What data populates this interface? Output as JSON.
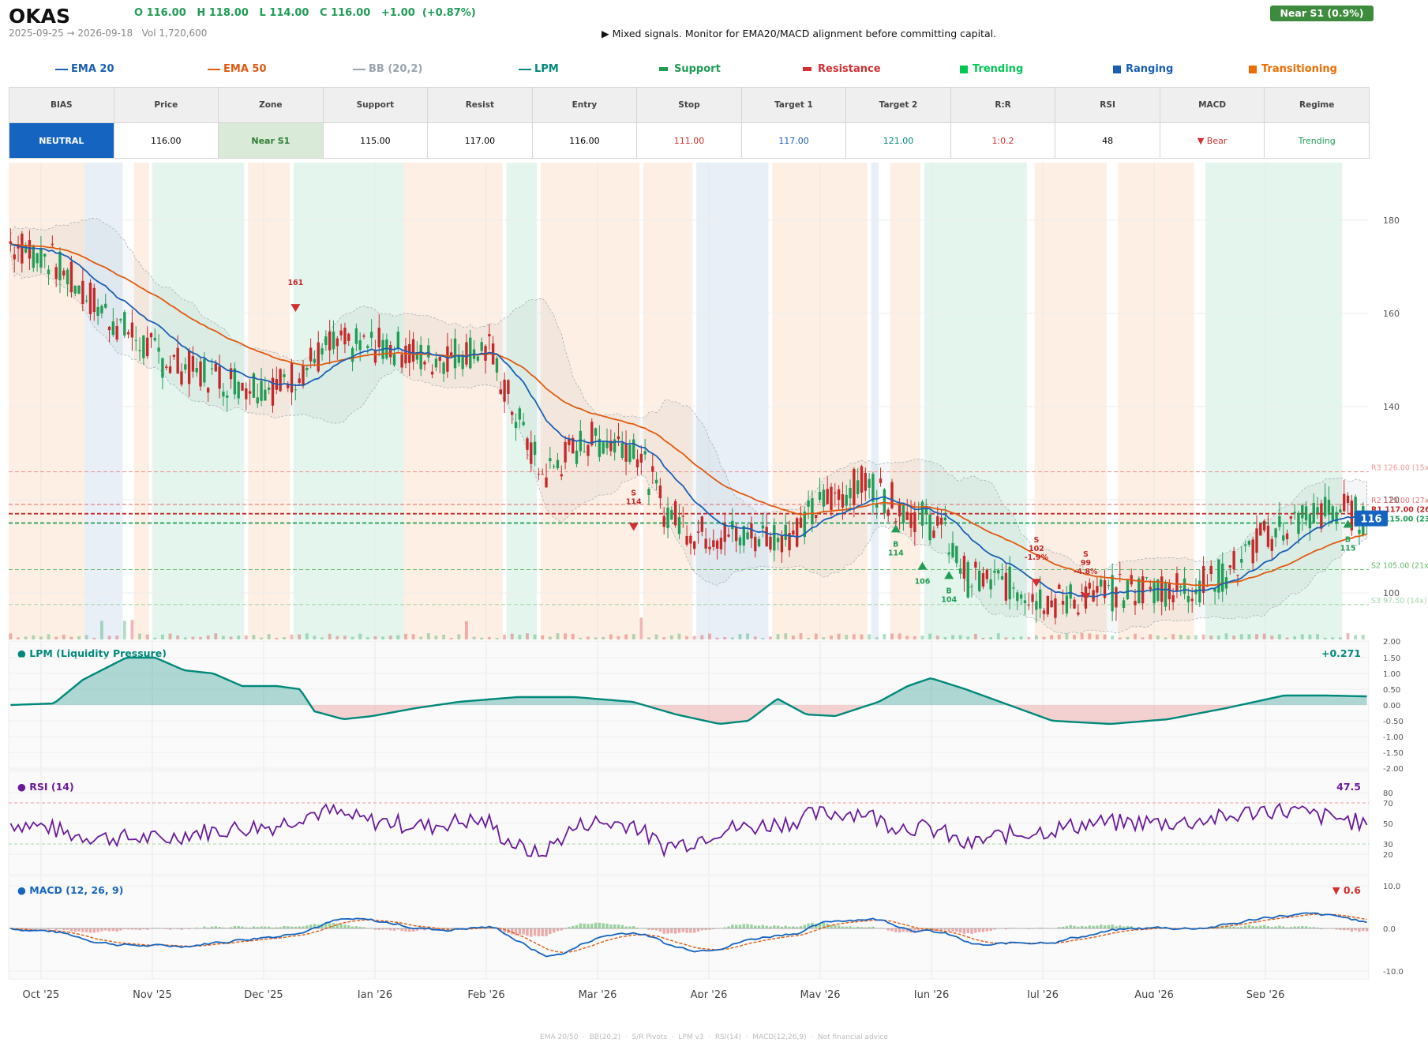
{
  "header": {
    "ticker": "OKAS",
    "ohlc": "O 116.00   H 118.00   L 114.00   C 116.00   +1.00  (+0.87%)",
    "range": "2025-09-25 → 2026-09-18   Vol 1,720,600",
    "message": "▶  Mixed signals. Monitor for EMA20/MACD alignment before committing capital.",
    "zone_badge": "Near S1  (0.9%)"
  },
  "legend": [
    {
      "label": "EMA 20",
      "color": "#1a5fb4",
      "kind": "line"
    },
    {
      "label": "EMA 50",
      "color": "#e05a10",
      "kind": "line"
    },
    {
      "label": "BB (20,2)",
      "color": "#9aa4ad",
      "kind": "line"
    },
    {
      "label": "LPM",
      "color": "#00897b",
      "kind": "line"
    },
    {
      "label": "Support",
      "color": "#1f9d55",
      "kind": "bar"
    },
    {
      "label": "Resistance",
      "color": "#d32f2f",
      "kind": "bar"
    },
    {
      "label": "Trending",
      "color": "#00c853",
      "kind": "square"
    },
    {
      "label": "Ranging",
      "color": "#1a5fb4",
      "kind": "square"
    },
    {
      "label": "Transitioning",
      "color": "#ef6c00",
      "kind": "square"
    }
  ],
  "metrics": {
    "headers": [
      "BIAS",
      "Price",
      "Zone",
      "Support",
      "Resist",
      "Entry",
      "Stop",
      "Target 1",
      "Target 2",
      "R:R",
      "RSI",
      "MACD",
      "Regime"
    ],
    "values": [
      "NEUTRAL",
      "116.00",
      "Near S1",
      "115.00",
      "117.00",
      "116.00",
      "111.00",
      "117.00",
      "121.00",
      "1:0.2",
      "48",
      "▼ Bear",
      "Trending"
    ]
  },
  "chart_data": {
    "type": "candlestick",
    "x_ticks": [
      "Oct '25",
      "Nov '25",
      "Dec '25",
      "Jan '26",
      "Feb '26",
      "Mar '26",
      "Apr '26",
      "May '26",
      "Jun '26",
      "Jul '26",
      "Aug '26",
      "Sep '26"
    ],
    "price_ticks": [
      "180",
      "160",
      "140",
      "120",
      "100"
    ],
    "volume_tick": "2.00",
    "last_price": "116",
    "levels": [
      {
        "label": "R3 126.00 (15x)",
        "value": 126,
        "color": "#ef9a9a"
      },
      {
        "label": "R2 119.00 (27x)",
        "value": 119,
        "color": "#e57373"
      },
      {
        "label": "R1 117.00 (26x)",
        "value": 117,
        "color": "#c62828"
      },
      {
        "label": "S1 115.00 (23x)",
        "value": 115,
        "color": "#1f9d55"
      },
      {
        "label": "S2 105.00 (21x)",
        "value": 105,
        "color": "#66bb6a"
      },
      {
        "label": "S3 97.50 (14x)",
        "value": 97.5,
        "color": "#a5d6a7"
      }
    ],
    "regimes": [
      {
        "start": 0,
        "end": 20,
        "type": "transitioning"
      },
      {
        "start": 20,
        "end": 30,
        "type": "ranging"
      },
      {
        "start": 33,
        "end": 37,
        "type": "transitioning"
      },
      {
        "start": 38,
        "end": 62,
        "type": "trending"
      },
      {
        "start": 63,
        "end": 74,
        "type": "transitioning"
      },
      {
        "start": 75,
        "end": 104,
        "type": "trending"
      },
      {
        "start": 104,
        "end": 130,
        "type": "transitioning"
      },
      {
        "start": 131,
        "end": 139,
        "type": "trending"
      },
      {
        "start": 140,
        "end": 166,
        "type": "transitioning"
      },
      {
        "start": 167,
        "end": 180,
        "type": "transitioning"
      },
      {
        "start": 181,
        "end": 200,
        "type": "ranging"
      },
      {
        "start": 201,
        "end": 226,
        "type": "transitioning"
      },
      {
        "start": 227,
        "end": 229,
        "type": "ranging"
      },
      {
        "start": 232,
        "end": 240,
        "type": "transitioning"
      },
      {
        "start": 241,
        "end": 268,
        "type": "trending"
      },
      {
        "start": 270,
        "end": 289,
        "type": "transitioning"
      },
      {
        "start": 292,
        "end": 312,
        "type": "transitioning"
      },
      {
        "start": 315,
        "end": 351,
        "type": "trending"
      }
    ],
    "signals": [
      {
        "i": 75,
        "side": "S",
        "price": 161,
        "text": [
          "161"
        ]
      },
      {
        "i": 164,
        "side": "S",
        "price": 114,
        "text": [
          "S",
          "114"
        ]
      },
      {
        "i": 233,
        "side": "B",
        "price": 114,
        "text": [
          "B",
          "114"
        ]
      },
      {
        "i": 240,
        "side": "B",
        "price": 106,
        "text": [
          "106"
        ]
      },
      {
        "i": 247,
        "side": "B",
        "price": 104,
        "text": [
          "B",
          "104"
        ]
      },
      {
        "i": 270,
        "side": "S",
        "price": 102,
        "text": [
          "S",
          "102",
          "-1.9%"
        ]
      },
      {
        "i": 283,
        "side": "S",
        "price": 99,
        "text": [
          "S",
          "99",
          "-4.8%"
        ]
      },
      {
        "i": 352,
        "side": "B",
        "price": 115,
        "text": [
          "B",
          "115"
        ]
      }
    ],
    "lpm": {
      "title": "LPM (Liquidity Pressure)",
      "last": "+0.271",
      "ticks": [
        "1.50",
        "1.00",
        "0.50",
        "0.00",
        "-0.50",
        "-1.00",
        "-1.50",
        "-2.00"
      ]
    },
    "rsi": {
      "title": "RSI (14)",
      "last": "47.5",
      "ticks": [
        "80",
        "70",
        "50",
        "30",
        "20"
      ]
    },
    "macd": {
      "title": "MACD (12, 26, 9)",
      "last": "▼ 0.6",
      "ticks": [
        "10.0",
        "0.0",
        "-10.0"
      ]
    }
  },
  "footer": "EMA 20/50  ·  BB(20,2)  ·  S/R Pivots  ·  LPM v3  ·  RSI(14)  ·  MACD(12,26,9)  ·  Not financial advice"
}
